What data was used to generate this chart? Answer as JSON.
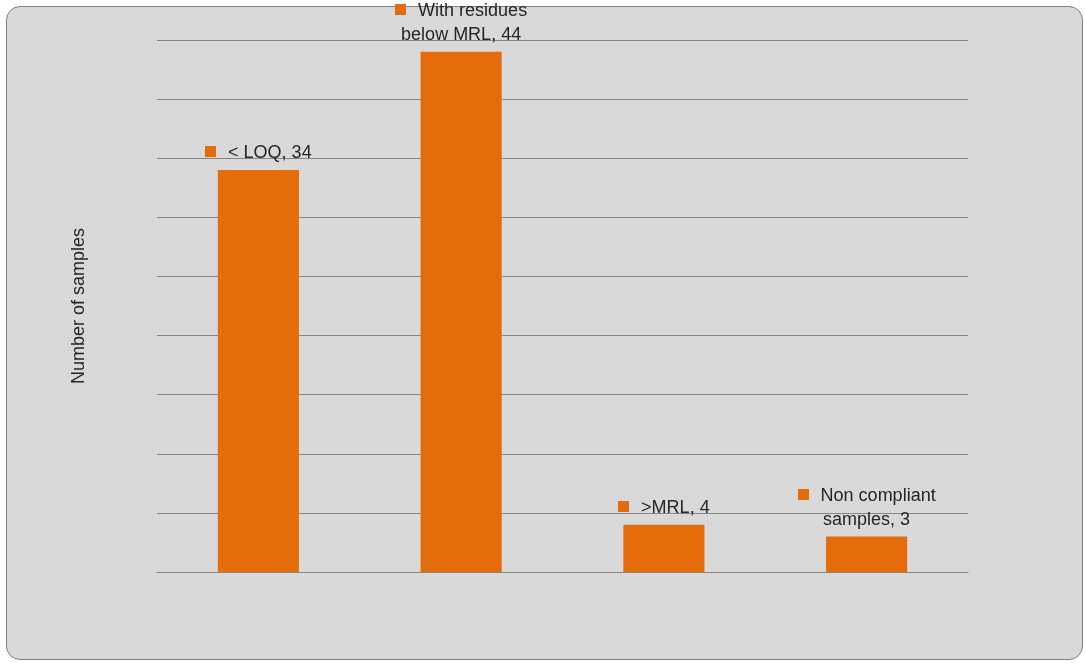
{
  "chart_data": {
    "type": "bar",
    "ylabel": "Number of samples",
    "categories": [
      null,
      null,
      null,
      null
    ],
    "values": [
      34,
      44,
      4,
      3
    ],
    "value_labels": [
      "< LOQ, 34",
      "With residues below MRL, 44",
      ">MRL, 4",
      "Non compliant samples, 3"
    ],
    "color": "#e46c0a",
    "tick_labels": false,
    "grid": "y"
  }
}
